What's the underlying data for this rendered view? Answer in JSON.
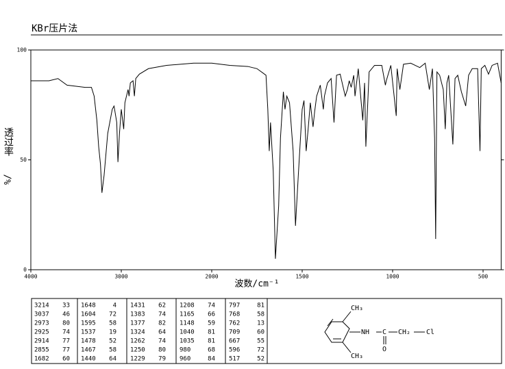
{
  "chart_data": {
    "type": "line",
    "title": "KBr压片法",
    "ylabel": "透过率",
    "yunit": "%/",
    "xlabel": "波数/cm⁻¹",
    "xlim": [
      4000,
      400
    ],
    "xticks": [
      4000,
      3000,
      2000,
      1500,
      1000,
      500
    ],
    "ylim": [
      0,
      100
    ],
    "yticks": [
      0,
      50,
      100
    ],
    "color": "#000000",
    "x": [
      4000,
      3800,
      3700,
      3600,
      3500,
      3400,
      3330,
      3300,
      3270,
      3250,
      3230,
      3214,
      3190,
      3150,
      3100,
      3080,
      3050,
      3037,
      3020,
      3000,
      2973,
      2960,
      2925,
      2914,
      2900,
      2870,
      2855,
      2840,
      2800,
      2700,
      2500,
      2200,
      2100,
      2000,
      1900,
      1800,
      1750,
      1700,
      1690,
      1682,
      1675,
      1660,
      1648,
      1630,
      1620,
      1604,
      1595,
      1585,
      1570,
      1550,
      1537,
      1520,
      1500,
      1490,
      1478,
      1467,
      1455,
      1440,
      1431,
      1420,
      1400,
      1383,
      1377,
      1360,
      1340,
      1324,
      1310,
      1290,
      1262,
      1250,
      1240,
      1229,
      1215,
      1208,
      1190,
      1165,
      1155,
      1148,
      1130,
      1100,
      1060,
      1040,
      1035,
      1010,
      980,
      975,
      960,
      940,
      900,
      850,
      820,
      797,
      780,
      768,
      762,
      755,
      740,
      720,
      709,
      700,
      690,
      667,
      655,
      640,
      620,
      596,
      580,
      560,
      530,
      517,
      510,
      490,
      470,
      450,
      420,
      400
    ],
    "y": [
      86,
      86,
      87,
      84,
      83.5,
      83,
      83,
      79,
      68,
      56,
      48,
      35,
      43,
      62,
      73,
      74.5,
      67,
      49,
      62,
      73,
      64,
      76,
      82,
      79,
      85,
      86,
      79,
      87,
      89,
      91.5,
      93,
      94,
      94,
      94,
      93,
      92.5,
      91.5,
      88.5,
      73,
      54,
      67,
      45,
      5,
      29,
      60,
      81,
      73,
      79,
      76,
      54,
      20,
      45,
      73,
      77,
      54,
      64,
      76,
      65,
      72,
      79,
      84,
      73,
      79,
      85,
      87,
      67,
      88.5,
      89,
      79,
      82,
      86,
      83,
      88.5,
      79,
      91.5,
      68,
      85,
      56,
      90,
      93,
      93,
      84,
      86,
      93,
      70,
      91.5,
      82,
      93.5,
      94,
      92,
      94,
      82,
      91.5,
      60,
      14,
      90,
      88.5,
      82,
      64,
      85,
      88.5,
      57,
      87,
      88.5,
      81,
      74.5,
      88.5,
      91.5,
      91.5,
      54,
      91.5,
      93,
      89,
      93,
      94,
      85
    ]
  },
  "peak_table": [
    [
      [
        3214,
        33
      ],
      [
        3037,
        46
      ],
      [
        2973,
        80
      ],
      [
        2925,
        74
      ],
      [
        2914,
        77
      ],
      [
        2855,
        77
      ],
      [
        1682,
        60
      ]
    ],
    [
      [
        1648,
        4
      ],
      [
        1604,
        72
      ],
      [
        1595,
        58
      ],
      [
        1537,
        19
      ],
      [
        1478,
        52
      ],
      [
        1467,
        58
      ],
      [
        1440,
        64
      ]
    ],
    [
      [
        1431,
        62
      ],
      [
        1383,
        74
      ],
      [
        1377,
        82
      ],
      [
        1324,
        64
      ],
      [
        1262,
        74
      ],
      [
        1250,
        80
      ],
      [
        1229,
        79
      ]
    ],
    [
      [
        1208,
        74
      ],
      [
        1165,
        66
      ],
      [
        1148,
        59
      ],
      [
        1040,
        81
      ],
      [
        1035,
        81
      ],
      [
        980,
        68
      ],
      [
        960,
        84
      ]
    ],
    [
      [
        797,
        81
      ],
      [
        768,
        58
      ],
      [
        762,
        13
      ],
      [
        709,
        60
      ],
      [
        667,
        55
      ],
      [
        596,
        72
      ],
      [
        517,
        52
      ]
    ]
  ],
  "structure": {
    "methyl_top": "CH₃",
    "amine": "NH",
    "carbonyl_c": "C",
    "oxygen": "O",
    "methylene": "CH₂",
    "chlorine": "Cl",
    "methyl_bottom": "CH₃"
  }
}
